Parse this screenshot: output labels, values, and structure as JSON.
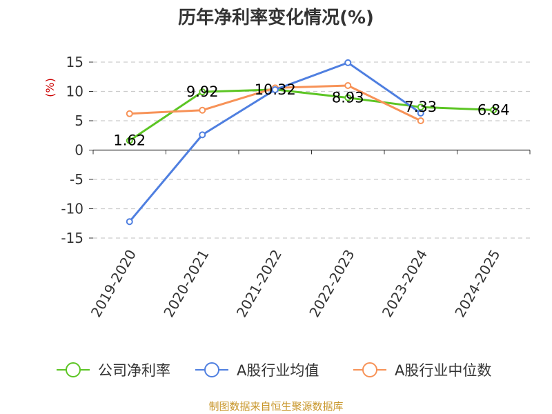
{
  "chart_data": {
    "type": "line",
    "title": "历年净利率变化情况(%)",
    "ylabel": "(%)",
    "xlabel": "",
    "categories": [
      "2019-2020",
      "2020-2021",
      "2021-2022",
      "2022-2023",
      "2023-2024",
      "2024-2025"
    ],
    "ylim": [
      -15,
      15
    ],
    "yticks": [
      15,
      10,
      5,
      0,
      -5,
      -10,
      -15
    ],
    "grid": true,
    "legend_position": "bottom",
    "series": [
      {
        "name": "公司净利率",
        "color": "#5cc524",
        "values": [
          1.62,
          9.92,
          10.32,
          8.93,
          7.33,
          6.84
        ],
        "labels": [
          "1.62",
          "9.92",
          "10.32",
          "8.93",
          "7.33",
          "6.84"
        ]
      },
      {
        "name": "A股行业均值",
        "color": "#4f7fe0",
        "values": [
          -12.2,
          2.6,
          10.3,
          14.9,
          6.3,
          null
        ]
      },
      {
        "name": "A股行业中位数",
        "color": "#f79257",
        "values": [
          6.2,
          6.8,
          10.6,
          11.0,
          5.0,
          null
        ]
      }
    ],
    "source": "制图数据来自恒生聚源数据库",
    "colors": {
      "ylabel": "#cc0000",
      "source": "#c8962a",
      "grid": "#cccccc",
      "axis": "#333333"
    }
  }
}
